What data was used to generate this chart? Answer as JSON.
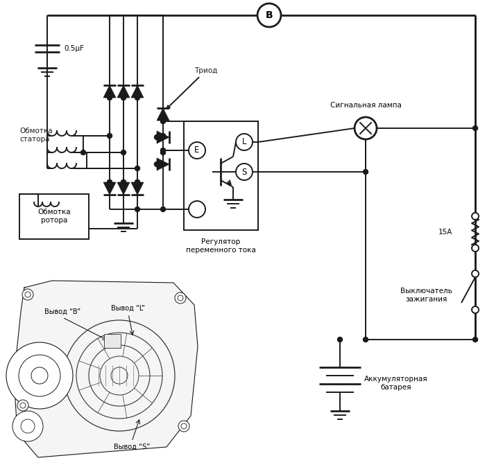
{
  "bg_color": "#ffffff",
  "lc": "#1a1a1a",
  "lw": 1.4,
  "lw2": 2.0,
  "fs": 7.5,
  "texts": {
    "cap": "0.5μF",
    "triod": "Триод",
    "stator": "Обмотка\nстатора",
    "rotor": "Обмотка\nротора",
    "regulator": "Регулятор\nпеременного тока",
    "signal_lamp": "Сигнальная лампа",
    "fuse": "15A",
    "ignition": "Выключатель\nзажигания",
    "battery": "Аккумуляторная\nбатарея",
    "B": "B",
    "E": "E",
    "L": "L",
    "S": "S",
    "vyvod_B": "Вывод “B”",
    "vyvod_L": "Вывод “L”",
    "vyvod_S": "Вывод “S”"
  }
}
